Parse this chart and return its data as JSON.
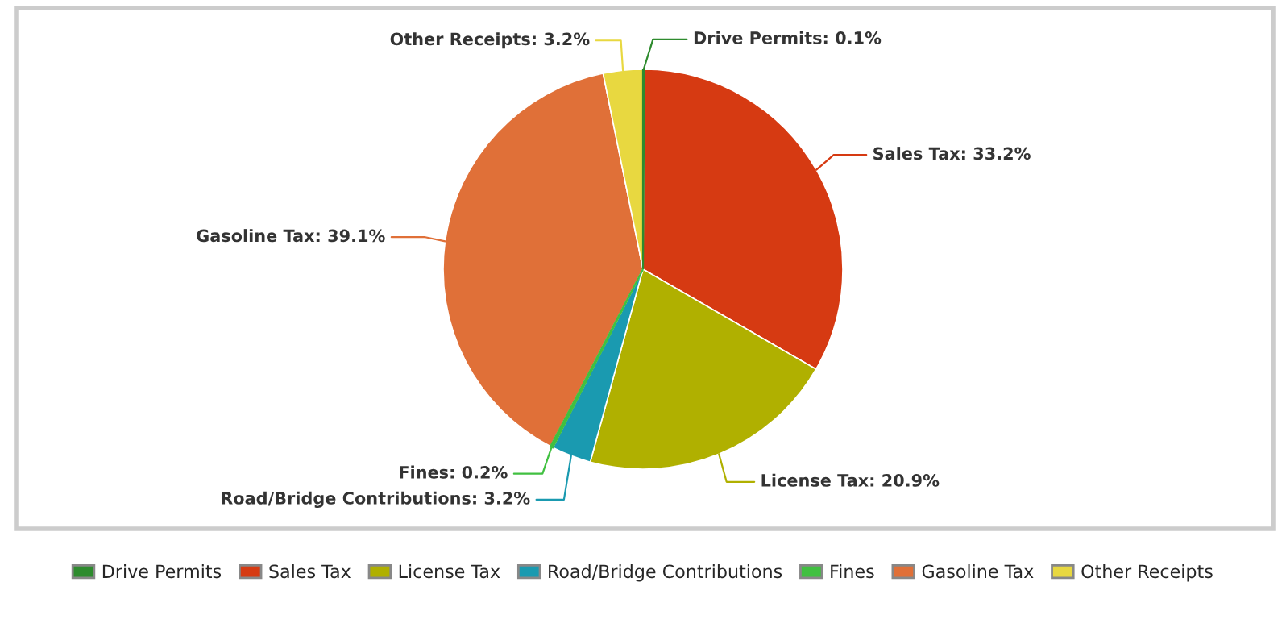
{
  "chart_data": {
    "type": "pie",
    "categories": [
      "Drive Permits",
      "Sales Tax",
      "License Tax",
      "Road/Bridge Contributions",
      "Fines",
      "Gasoline Tax",
      "Other Receipts"
    ],
    "values": [
      0.1,
      33.2,
      20.9,
      3.2,
      0.2,
      39.1,
      3.2
    ],
    "colors": [
      "#2e8b2e",
      "#d63a12",
      "#b0b000",
      "#1a9ab0",
      "#40c040",
      "#e07038",
      "#e8d840"
    ],
    "value_labels": [
      "Drive Permits: 0.1%",
      "Sales Tax: 33.2%",
      "License Tax: 20.9%",
      "Road/Bridge Contributions: 3.2%",
      "Fines: 0.2%",
      "Gasoline Tax: 39.1%",
      "Other Receipts: 3.2%"
    ],
    "legend": "bottom"
  }
}
